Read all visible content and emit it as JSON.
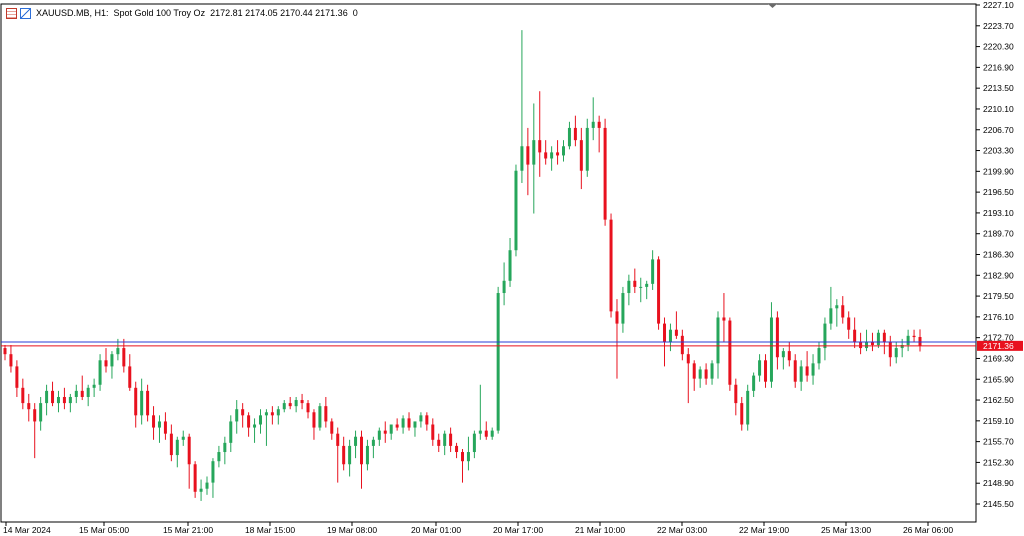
{
  "header": {
    "symbol": "XAUUSD.MB, H1:",
    "description": "Spot Gold 100 Troy Oz",
    "ohlc": "2172.81 2174.05 2170.44 2171.36",
    "flag": "0",
    "icons": [
      "settings-icon",
      "one-click-trading-icon"
    ]
  },
  "colors": {
    "bull": "#26a65b",
    "bear": "#e8111e",
    "wick": "#000000",
    "bid_line": "#e8111e",
    "ask_line": "#2a3bd6",
    "axis": "#000000",
    "text": "#000000",
    "price_label_bg": "#e8111e"
  },
  "chart_data": {
    "type": "candlestick",
    "symbol": "XAUUSD.MB",
    "timeframe": "H1",
    "current_price": "2171.36",
    "ask_price": 2172.0,
    "ylim": [
      2143.5,
      2227.1
    ],
    "y_tick_labels": [
      "2227.10",
      "2223.70",
      "2220.30",
      "2216.90",
      "2213.50",
      "2210.10",
      "2206.70",
      "2203.30",
      "2199.90",
      "2196.50",
      "2193.10",
      "2189.70",
      "2186.30",
      "2182.90",
      "2179.50",
      "2176.10",
      "2172.70",
      "2169.30",
      "2165.90",
      "2162.50",
      "2159.10",
      "2155.70",
      "2152.30",
      "2148.90",
      "2145.50"
    ],
    "x_tick_labels": [
      "14 Mar 2024",
      "15 Mar 05:00",
      "15 Mar 21:00",
      "18 Mar 15:00",
      "19 Mar 08:00",
      "20 Mar 01:00",
      "20 Mar 17:00",
      "21 Mar 10:00",
      "22 Mar 03:00",
      "22 Mar 19:00",
      "25 Mar 13:00",
      "26 Mar 06:00"
    ],
    "candles": [
      [
        2171.0,
        2171.5,
        2169.0,
        2170.0
      ],
      [
        2170.0,
        2171.5,
        2167.0,
        2168.0
      ],
      [
        2168.0,
        2169.0,
        2163.0,
        2164.5
      ],
      [
        2164.5,
        2166.0,
        2161.0,
        2162.0
      ],
      [
        2162.0,
        2163.5,
        2159.0,
        2161.0
      ],
      [
        2161.0,
        2162.0,
        2153.0,
        2159.0
      ],
      [
        2159.0,
        2163.0,
        2157.5,
        2162.0
      ],
      [
        2162.0,
        2165.0,
        2160.0,
        2164.0
      ],
      [
        2164.0,
        2165.5,
        2161.5,
        2162.0
      ],
      [
        2162.0,
        2164.0,
        2160.5,
        2163.0
      ],
      [
        2163.0,
        2164.5,
        2161.0,
        2162.0
      ],
      [
        2162.0,
        2163.5,
        2160.5,
        2163.0
      ],
      [
        2163.0,
        2165.0,
        2162.0,
        2164.0
      ],
      [
        2164.0,
        2166.5,
        2162.5,
        2163.0
      ],
      [
        2163.0,
        2165.0,
        2161.5,
        2164.5
      ],
      [
        2164.5,
        2166.0,
        2163.0,
        2165.0
      ],
      [
        2165.0,
        2170.0,
        2164.0,
        2169.0
      ],
      [
        2169.0,
        2171.0,
        2167.0,
        2168.0
      ],
      [
        2168.0,
        2170.5,
        2166.0,
        2170.0
      ],
      [
        2170.0,
        2172.5,
        2169.0,
        2171.0
      ],
      [
        2171.0,
        2172.5,
        2167.0,
        2168.0
      ],
      [
        2168.0,
        2170.0,
        2164.0,
        2164.5
      ],
      [
        2164.5,
        2165.5,
        2158.0,
        2160.0
      ],
      [
        2160.0,
        2166.0,
        2158.5,
        2164.0
      ],
      [
        2164.0,
        2165.0,
        2159.0,
        2160.0
      ],
      [
        2160.0,
        2161.5,
        2156.0,
        2158.0
      ],
      [
        2158.0,
        2160.0,
        2155.5,
        2159.0
      ],
      [
        2159.0,
        2160.5,
        2156.0,
        2157.0
      ],
      [
        2157.0,
        2158.5,
        2152.5,
        2153.5
      ],
      [
        2153.5,
        2156.5,
        2151.5,
        2156.0
      ],
      [
        2156.0,
        2157.5,
        2155.0,
        2156.5
      ],
      [
        2156.5,
        2157.0,
        2148.0,
        2152.0
      ],
      [
        2152.0,
        2152.5,
        2146.5,
        2147.5
      ],
      [
        2147.5,
        2149.5,
        2146.0,
        2148.0
      ],
      [
        2148.0,
        2150.0,
        2147.0,
        2149.0
      ],
      [
        2149.0,
        2153.0,
        2146.5,
        2152.5
      ],
      [
        2152.5,
        2155.0,
        2151.5,
        2154.0
      ],
      [
        2154.0,
        2156.5,
        2152.0,
        2155.5
      ],
      [
        2155.5,
        2160.0,
        2154.0,
        2159.0
      ],
      [
        2159.0,
        2162.5,
        2157.0,
        2161.0
      ],
      [
        2161.0,
        2162.0,
        2158.0,
        2160.0
      ],
      [
        2160.0,
        2160.5,
        2156.5,
        2158.0
      ],
      [
        2158.0,
        2159.5,
        2155.5,
        2158.5
      ],
      [
        2158.5,
        2161.0,
        2157.0,
        2160.0
      ],
      [
        2160.0,
        2161.0,
        2155.0,
        2160.5
      ],
      [
        2160.5,
        2161.5,
        2158.5,
        2160.0
      ],
      [
        2160.0,
        2161.5,
        2158.5,
        2161.0
      ],
      [
        2161.0,
        2162.5,
        2160.5,
        2162.0
      ],
      [
        2162.0,
        2163.0,
        2161.0,
        2161.5
      ],
      [
        2161.5,
        2163.0,
        2160.5,
        2162.5
      ],
      [
        2162.5,
        2163.5,
        2161.0,
        2162.0
      ],
      [
        2162.0,
        2162.5,
        2159.5,
        2160.5
      ],
      [
        2160.5,
        2161.0,
        2156.0,
        2158.0
      ],
      [
        2158.0,
        2162.0,
        2157.5,
        2161.5
      ],
      [
        2161.5,
        2163.0,
        2158.0,
        2159.0
      ],
      [
        2159.0,
        2159.5,
        2156.0,
        2157.0
      ],
      [
        2157.0,
        2158.0,
        2149.0,
        2155.0
      ],
      [
        2155.0,
        2156.5,
        2151.0,
        2152.0
      ],
      [
        2152.0,
        2156.0,
        2150.0,
        2155.0
      ],
      [
        2155.0,
        2157.5,
        2153.0,
        2156.5
      ],
      [
        2156.5,
        2157.5,
        2148.0,
        2152.0
      ],
      [
        2152.0,
        2156.0,
        2151.0,
        2155.0
      ],
      [
        2155.0,
        2156.5,
        2153.0,
        2156.0
      ],
      [
        2156.0,
        2158.0,
        2155.0,
        2157.5
      ],
      [
        2157.5,
        2159.0,
        2155.5,
        2157.0
      ],
      [
        2157.0,
        2158.5,
        2156.0,
        2158.5
      ],
      [
        2158.5,
        2159.5,
        2157.5,
        2158.0
      ],
      [
        2158.0,
        2160.0,
        2157.0,
        2159.5
      ],
      [
        2159.5,
        2160.5,
        2157.5,
        2158.0
      ],
      [
        2158.0,
        2159.0,
        2156.5,
        2159.0
      ],
      [
        2159.0,
        2160.5,
        2158.0,
        2160.0
      ],
      [
        2160.0,
        2160.5,
        2157.5,
        2158.5
      ],
      [
        2158.5,
        2159.5,
        2155.0,
        2156.0
      ],
      [
        2156.0,
        2157.0,
        2154.0,
        2155.0
      ],
      [
        2155.0,
        2157.5,
        2153.5,
        2157.0
      ],
      [
        2157.0,
        2158.0,
        2154.0,
        2155.0
      ],
      [
        2155.0,
        2155.5,
        2153.0,
        2154.0
      ],
      [
        2154.0,
        2154.5,
        2149.0,
        2152.5
      ],
      [
        2152.5,
        2156.5,
        2151.0,
        2154.0
      ],
      [
        2154.0,
        2157.5,
        2153.0,
        2157.0
      ],
      [
        2157.0,
        2165.0,
        2156.0,
        2157.5
      ],
      [
        2157.5,
        2159.0,
        2156.0,
        2156.5
      ],
      [
        2156.5,
        2158.0,
        2156.0,
        2157.5
      ],
      [
        2157.5,
        2181.0,
        2157.0,
        2180.0
      ],
      [
        2180.0,
        2185.0,
        2178.0,
        2182.0
      ],
      [
        2182.0,
        2189.0,
        2181.0,
        2187.0
      ],
      [
        2187.0,
        2201.0,
        2186.0,
        2200.0
      ],
      [
        2200.0,
        2223.0,
        2198.0,
        2204.0
      ],
      [
        2204.0,
        2207.0,
        2196.0,
        2201.0
      ],
      [
        2201.0,
        2211.0,
        2193.0,
        2205.0
      ],
      [
        2205.0,
        2213.0,
        2199.0,
        2203.0
      ],
      [
        2203.0,
        2205.0,
        2201.0,
        2202.0
      ],
      [
        2202.0,
        2204.0,
        2200.0,
        2203.0
      ],
      [
        2203.0,
        2205.0,
        2201.0,
        2202.5
      ],
      [
        2202.5,
        2205.0,
        2201.5,
        2204.0
      ],
      [
        2204.0,
        2208.0,
        2203.5,
        2207.0
      ],
      [
        2207.0,
        2209.0,
        2204.0,
        2205.0
      ],
      [
        2205.0,
        2207.0,
        2197.0,
        2200.0
      ],
      [
        2200.0,
        2208.5,
        2199.0,
        2207.0
      ],
      [
        2207.0,
        2212.0,
        2205.0,
        2208.0
      ],
      [
        2208.0,
        2209.0,
        2203.0,
        2207.0
      ],
      [
        2207.0,
        2208.5,
        2191.0,
        2192.0
      ],
      [
        2192.0,
        2193.0,
        2176.0,
        2177.0
      ],
      [
        2177.0,
        2179.0,
        2166.0,
        2175.0
      ],
      [
        2175.0,
        2181.0,
        2173.5,
        2180.0
      ],
      [
        2180.0,
        2183.0,
        2178.0,
        2182.0
      ],
      [
        2182.0,
        2184.0,
        2180.0,
        2181.0
      ],
      [
        2181.0,
        2182.5,
        2178.5,
        2181.0
      ],
      [
        2181.0,
        2182.0,
        2179.0,
        2181.5
      ],
      [
        2181.5,
        2187.0,
        2180.5,
        2185.5
      ],
      [
        2185.5,
        2186.0,
        2174.0,
        2175.0
      ],
      [
        2175.0,
        2176.0,
        2168.0,
        2172.0
      ],
      [
        2172.0,
        2175.0,
        2170.5,
        2174.0
      ],
      [
        2174.0,
        2177.0,
        2172.5,
        2173.0
      ],
      [
        2173.0,
        2174.0,
        2169.0,
        2170.0
      ],
      [
        2170.0,
        2171.0,
        2162.0,
        2168.5
      ],
      [
        2168.5,
        2169.0,
        2164.0,
        2166.0
      ],
      [
        2166.0,
        2168.0,
        2164.5,
        2167.5
      ],
      [
        2167.5,
        2168.5,
        2165.0,
        2166.0
      ],
      [
        2166.0,
        2169.0,
        2165.0,
        2168.5
      ],
      [
        2168.5,
        2177.0,
        2166.0,
        2176.0
      ],
      [
        2176.0,
        2180.0,
        2172.0,
        2175.5
      ],
      [
        2175.5,
        2176.0,
        2164.0,
        2165.0
      ],
      [
        2165.0,
        2166.0,
        2160.0,
        2162.0
      ],
      [
        2162.0,
        2163.0,
        2157.5,
        2158.5
      ],
      [
        2158.5,
        2165.0,
        2157.5,
        2164.0
      ],
      [
        2164.0,
        2167.0,
        2163.0,
        2166.5
      ],
      [
        2166.5,
        2170.0,
        2165.5,
        2169.0
      ],
      [
        2169.0,
        2170.0,
        2164.5,
        2165.5
      ],
      [
        2165.5,
        2178.5,
        2164.5,
        2176.0
      ],
      [
        2176.0,
        2177.0,
        2167.5,
        2169.5
      ],
      [
        2169.5,
        2171.0,
        2167.5,
        2170.5
      ],
      [
        2170.5,
        2172.0,
        2168.0,
        2169.0
      ],
      [
        2169.0,
        2170.0,
        2164.5,
        2165.5
      ],
      [
        2165.5,
        2169.0,
        2164.0,
        2168.0
      ],
      [
        2168.0,
        2170.5,
        2165.5,
        2166.5
      ],
      [
        2166.5,
        2170.0,
        2165.0,
        2168.5
      ],
      [
        2168.5,
        2172.0,
        2167.5,
        2171.0
      ],
      [
        2171.0,
        2176.0,
        2169.0,
        2175.0
      ],
      [
        2175.0,
        2181.0,
        2174.0,
        2177.5
      ],
      [
        2177.5,
        2179.0,
        2174.5,
        2178.0
      ],
      [
        2178.0,
        2179.5,
        2175.0,
        2176.0
      ],
      [
        2176.0,
        2177.0,
        2172.5,
        2174.0
      ],
      [
        2174.0,
        2176.0,
        2171.0,
        2172.0
      ],
      [
        2172.0,
        2173.5,
        2170.0,
        2171.0
      ],
      [
        2171.0,
        2174.0,
        2170.5,
        2172.0
      ],
      [
        2172.0,
        2173.5,
        2170.5,
        2171.5
      ],
      [
        2171.5,
        2174.0,
        2171.0,
        2173.5
      ],
      [
        2173.5,
        2174.0,
        2170.0,
        2172.0
      ],
      [
        2172.0,
        2173.0,
        2168.0,
        2169.5
      ],
      [
        2169.5,
        2172.0,
        2168.5,
        2171.0
      ],
      [
        2171.0,
        2172.5,
        2169.5,
        2171.5
      ],
      [
        2171.5,
        2174.0,
        2170.5,
        2173.0
      ],
      [
        2173.0,
        2174.0,
        2172.0,
        2172.8
      ],
      [
        2172.81,
        2174.05,
        2170.44,
        2171.36
      ]
    ]
  }
}
